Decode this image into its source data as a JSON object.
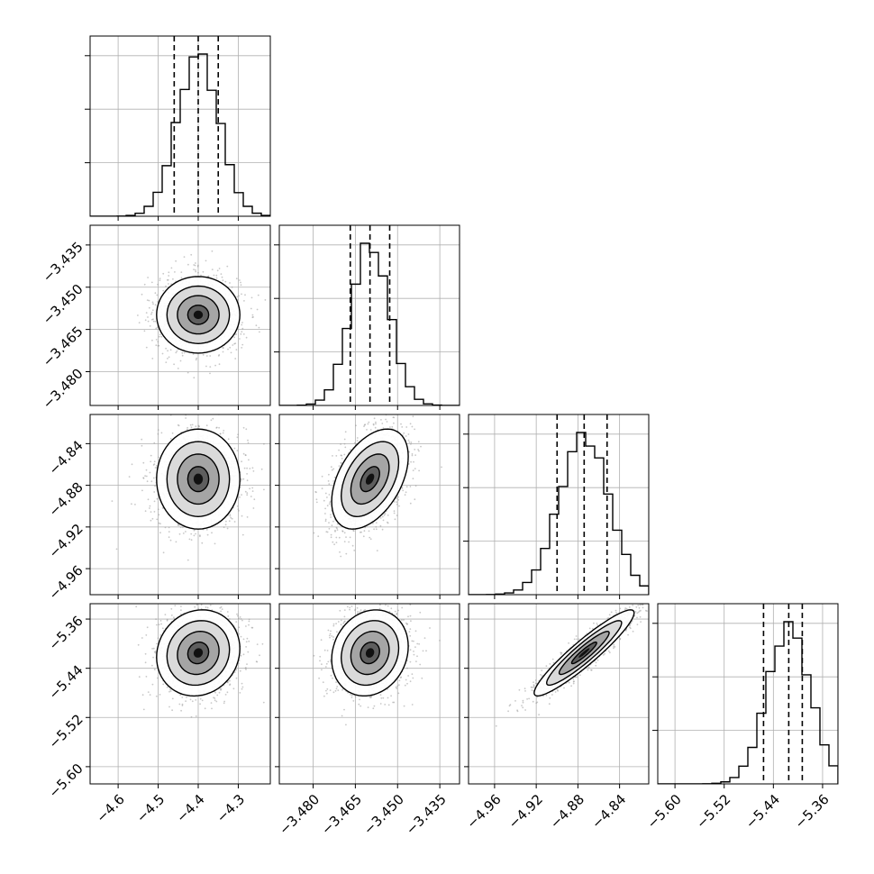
{
  "chart_data": {
    "type": "corner",
    "parameters": [
      {
        "index": 0,
        "median": -4.4,
        "quantiles": [
          -4.46,
          -4.4,
          -4.35
        ],
        "sigma": 0.052,
        "range": [
          -4.67,
          -4.22
        ],
        "ticks": [
          "−4.6",
          "−4.5",
          "−4.4",
          "−4.3"
        ],
        "tick_values": [
          -4.6,
          -4.5,
          -4.4,
          -4.3
        ]
      },
      {
        "index": 1,
        "median": -3.4598,
        "quantiles": [
          -3.4668,
          -3.4598,
          -3.4528
        ],
        "sigma": 0.0068,
        "range": [
          -3.492,
          -3.428
        ],
        "ticks": [
          "−3.480",
          "−3.465",
          "−3.450",
          "−3.435"
        ],
        "tick_values": [
          -3.48,
          -3.465,
          -3.45,
          -3.435
        ]
      },
      {
        "index": 2,
        "median": -4.874,
        "quantiles": [
          -4.9,
          -4.874,
          -4.852
        ],
        "sigma": 0.024,
        "range": [
          -4.985,
          -4.812
        ],
        "ticks": [
          "−4.84",
          "−4.88",
          "−4.92",
          "−4.96"
        ],
        "tick_values": [
          -4.84,
          -4.88,
          -4.92,
          -4.96
        ]
      },
      {
        "index": 3,
        "median": -5.415,
        "quantiles": [
          -5.456,
          -5.415,
          -5.393
        ],
        "sigma": 0.035,
        "range": [
          -5.628,
          -5.335
        ],
        "ticks": [
          "−5.36",
          "−5.44",
          "−5.52",
          "−5.60"
        ],
        "tick_values": [
          -5.36,
          -5.44,
          -5.52,
          -5.6
        ]
      }
    ],
    "correlations": [
      {
        "pair": [
          1,
          0
        ],
        "rho": 0.0
      },
      {
        "pair": [
          2,
          0
        ],
        "rho": 0.0
      },
      {
        "pair": [
          2,
          1
        ],
        "rho": 0.45
      },
      {
        "pair": [
          3,
          0
        ],
        "rho": 0.1
      },
      {
        "pair": [
          3,
          1
        ],
        "rho": 0.15
      },
      {
        "pair": [
          3,
          2
        ],
        "rho": 0.93
      }
    ],
    "bottom_tick_labels": [
      [
        "−4.6",
        "−4.5",
        "−4.4",
        "−4.3"
      ],
      [
        "−3.480",
        "−3.465",
        "−3.450",
        "−3.435"
      ],
      [
        "−4.96",
        "−4.92",
        "−4.88",
        "−4.84"
      ],
      [
        "−5.60",
        "−5.52",
        "−5.44",
        "−5.36"
      ]
    ],
    "left_tick_labels": [
      [],
      [
        "−3.435",
        "−3.450",
        "−3.465",
        "−3.480"
      ],
      [
        "−4.84",
        "−4.88",
        "−4.92",
        "−4.96"
      ],
      [
        "−5.36",
        "−5.44",
        "−5.52",
        "−5.60"
      ]
    ],
    "grid": true,
    "quantile_lines": "dashed",
    "contour_levels_sigma": [
      0.5,
      1.0,
      1.5,
      2.0
    ],
    "colors": {
      "ink": "#000000",
      "grid": "#b0b0b0",
      "points": "#9a9a9a"
    }
  }
}
